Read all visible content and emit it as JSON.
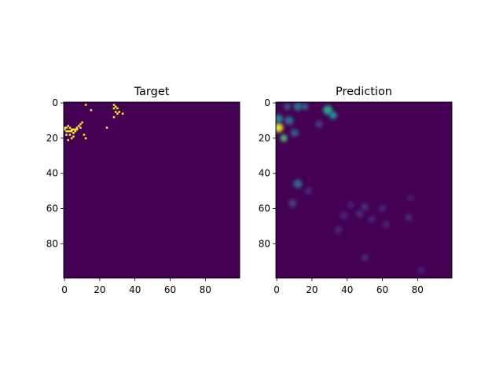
{
  "figure": {
    "background": "#ffffff"
  },
  "chart_data": [
    {
      "type": "heatmap",
      "title": "Target",
      "xlabel": "",
      "ylabel": "",
      "xlim": [
        0,
        100
      ],
      "ylim": [
        100,
        0
      ],
      "xticks": [
        0,
        20,
        40,
        60,
        80
      ],
      "yticks": [
        0,
        20,
        40,
        60,
        80
      ],
      "colormap": "viridis",
      "background_value": 0,
      "colors": {
        "low": "#440154",
        "high": "#fde725"
      },
      "points": [
        {
          "x": 0,
          "y": 14,
          "v": 1
        },
        {
          "x": 1,
          "y": 14,
          "v": 1
        },
        {
          "x": 2,
          "y": 13,
          "v": 1
        },
        {
          "x": 3,
          "y": 14,
          "v": 1
        },
        {
          "x": 4,
          "y": 15,
          "v": 1
        },
        {
          "x": 5,
          "y": 15,
          "v": 1
        },
        {
          "x": 6,
          "y": 15,
          "v": 1
        },
        {
          "x": 7,
          "y": 14,
          "v": 1
        },
        {
          "x": 0,
          "y": 15,
          "v": 1
        },
        {
          "x": 1,
          "y": 16,
          "v": 1
        },
        {
          "x": 2,
          "y": 16,
          "v": 1
        },
        {
          "x": 3,
          "y": 16,
          "v": 1
        },
        {
          "x": 4,
          "y": 16,
          "v": 1
        },
        {
          "x": 5,
          "y": 17,
          "v": 1
        },
        {
          "x": 6,
          "y": 16,
          "v": 1
        },
        {
          "x": 7,
          "y": 15,
          "v": 1
        },
        {
          "x": 8,
          "y": 13,
          "v": 1
        },
        {
          "x": 9,
          "y": 12,
          "v": 1
        },
        {
          "x": 10,
          "y": 11,
          "v": 1
        },
        {
          "x": 9,
          "y": 14,
          "v": 1
        },
        {
          "x": 1,
          "y": 18,
          "v": 1
        },
        {
          "x": 3,
          "y": 18,
          "v": 1
        },
        {
          "x": 4,
          "y": 20,
          "v": 1
        },
        {
          "x": 2,
          "y": 21,
          "v": 1
        },
        {
          "x": 5,
          "y": 19,
          "v": 1
        },
        {
          "x": 11,
          "y": 18,
          "v": 1
        },
        {
          "x": 12,
          "y": 20,
          "v": 1
        },
        {
          "x": 12,
          "y": 1,
          "v": 1
        },
        {
          "x": 15,
          "y": 4,
          "v": 1
        },
        {
          "x": 24,
          "y": 14,
          "v": 1
        },
        {
          "x": 28,
          "y": 1,
          "v": 1
        },
        {
          "x": 29,
          "y": 2,
          "v": 1
        },
        {
          "x": 30,
          "y": 3,
          "v": 1
        },
        {
          "x": 28,
          "y": 3,
          "v": 1
        },
        {
          "x": 29,
          "y": 5,
          "v": 1
        },
        {
          "x": 30,
          "y": 6,
          "v": 1
        },
        {
          "x": 31,
          "y": 5,
          "v": 1
        },
        {
          "x": 33,
          "y": 6,
          "v": 1
        },
        {
          "x": 28,
          "y": 8,
          "v": 1
        }
      ]
    },
    {
      "type": "heatmap",
      "title": "Prediction",
      "xlabel": "",
      "ylabel": "",
      "xlim": [
        0,
        100
      ],
      "ylim": [
        100,
        0
      ],
      "xticks": [
        0,
        20,
        40,
        60,
        80
      ],
      "yticks": [
        0,
        20,
        40,
        60,
        80
      ],
      "colormap": "viridis",
      "background_value": 0,
      "colors": {
        "low": "#440154",
        "high": "#fde725"
      },
      "blobs": [
        {
          "x": 1,
          "y": 14,
          "v": 0.95,
          "r": 2.6
        },
        {
          "x": 4,
          "y": 20,
          "v": 0.7,
          "r": 2.0
        },
        {
          "x": 1,
          "y": 9,
          "v": 0.45,
          "r": 2.5
        },
        {
          "x": 7,
          "y": 10,
          "v": 0.35,
          "r": 2.5
        },
        {
          "x": 10,
          "y": 17,
          "v": 0.3,
          "r": 2.2
        },
        {
          "x": 12,
          "y": 2,
          "v": 0.35,
          "r": 2.5
        },
        {
          "x": 16,
          "y": 2,
          "v": 0.3,
          "r": 2.0
        },
        {
          "x": 6,
          "y": 2,
          "v": 0.25,
          "r": 2.0
        },
        {
          "x": 29,
          "y": 4,
          "v": 0.6,
          "r": 2.6
        },
        {
          "x": 32,
          "y": 7,
          "v": 0.5,
          "r": 2.2
        },
        {
          "x": 24,
          "y": 12,
          "v": 0.2,
          "r": 2.0
        },
        {
          "x": 12,
          "y": 46,
          "v": 0.35,
          "r": 2.4
        },
        {
          "x": 9,
          "y": 57,
          "v": 0.2,
          "r": 2.2
        },
        {
          "x": 18,
          "y": 50,
          "v": 0.12,
          "r": 2.0
        },
        {
          "x": 35,
          "y": 72,
          "v": 0.12,
          "r": 2.0
        },
        {
          "x": 38,
          "y": 64,
          "v": 0.1,
          "r": 2.2
        },
        {
          "x": 42,
          "y": 58,
          "v": 0.1,
          "r": 2.0
        },
        {
          "x": 47,
          "y": 63,
          "v": 0.12,
          "r": 2.2
        },
        {
          "x": 50,
          "y": 59,
          "v": 0.14,
          "r": 2.0
        },
        {
          "x": 54,
          "y": 66,
          "v": 0.1,
          "r": 2.0
        },
        {
          "x": 60,
          "y": 60,
          "v": 0.1,
          "r": 2.2
        },
        {
          "x": 62,
          "y": 69,
          "v": 0.1,
          "r": 2.0
        },
        {
          "x": 50,
          "y": 88,
          "v": 0.12,
          "r": 2.0
        },
        {
          "x": 75,
          "y": 65,
          "v": 0.14,
          "r": 2.0
        },
        {
          "x": 76,
          "y": 54,
          "v": 0.1,
          "r": 1.8
        },
        {
          "x": 82,
          "y": 95,
          "v": 0.08,
          "r": 2.0
        }
      ]
    }
  ]
}
